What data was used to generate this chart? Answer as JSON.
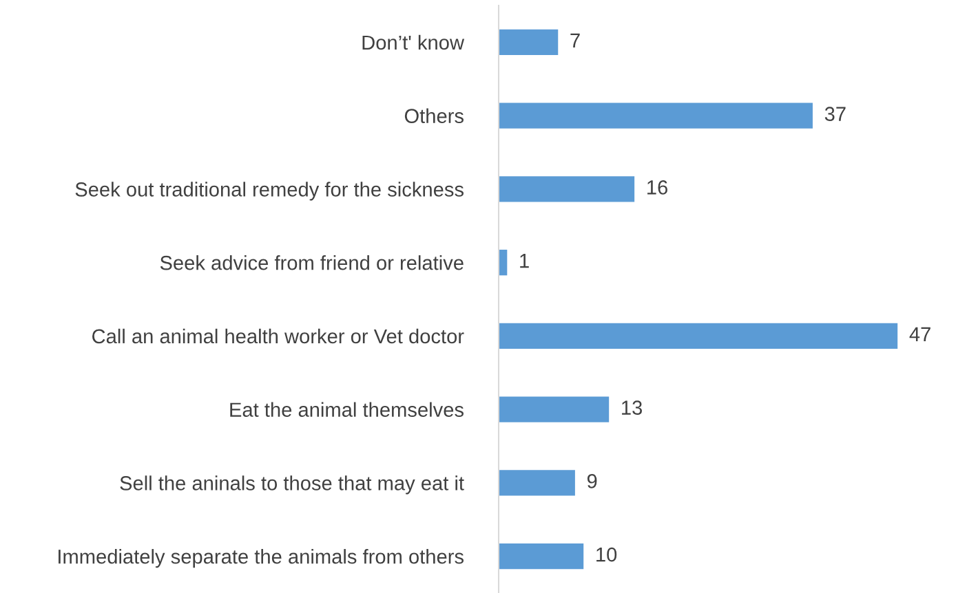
{
  "chart_data": {
    "type": "bar",
    "orientation": "horizontal",
    "categories": [
      "Don’t' know",
      "Others",
      "Seek out traditional remedy for the sickness",
      "Seek advice from friend or relative",
      "Call an animal health worker or Vet doctor",
      "Eat the animal themselves",
      "Sell the aninals to those that may eat it",
      "Immediately separate the animals from others"
    ],
    "values": [
      7,
      37,
      16,
      1,
      47,
      13,
      9,
      10
    ],
    "color": "#5b9bd5",
    "data_labels": true,
    "grid": false,
    "legend": false,
    "tick_labels": "y"
  }
}
